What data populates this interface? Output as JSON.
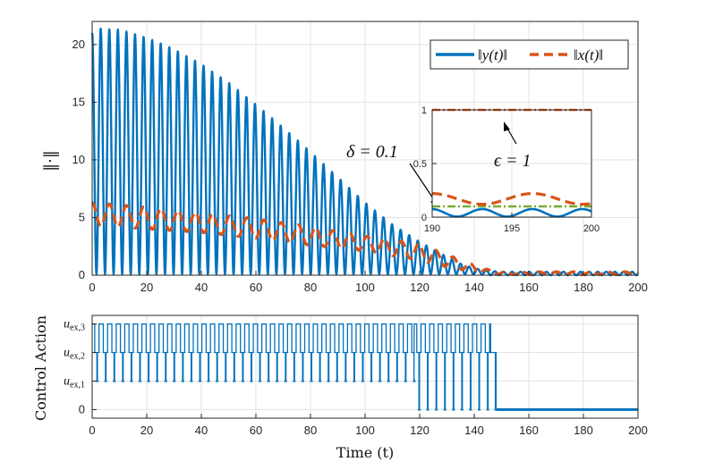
{
  "chart_data": [
    {
      "id": "norms",
      "type": "line",
      "ylabel": "‖·‖",
      "xlim": [
        0,
        200
      ],
      "ylim": [
        0,
        22
      ],
      "xticks": [
        0,
        20,
        40,
        60,
        80,
        100,
        120,
        140,
        160,
        180,
        200
      ],
      "yticks": [
        0,
        5,
        10,
        15,
        20
      ],
      "grid": true,
      "legend_position": "top-right",
      "series": [
        {
          "name": "‖y(t)‖",
          "color": "#0072BD",
          "style": "solid",
          "oscillation_period": 3.14,
          "envelope_x": [
            0,
            2,
            10,
            20,
            30,
            40,
            50,
            60,
            70,
            80,
            90,
            100,
            110,
            120,
            130,
            135,
            140,
            145,
            150,
            200
          ],
          "envelope_max": [
            21.0,
            21.4,
            21.3,
            20.6,
            19.6,
            18.3,
            16.7,
            14.8,
            12.8,
            10.7,
            8.5,
            6.3,
            4.4,
            2.9,
            1.6,
            1.0,
            0.6,
            0.4,
            0.3,
            0.3
          ],
          "envelope_min": [
            0.1,
            0.1,
            0.1,
            0.1,
            0.1,
            0.1,
            0.1,
            0.1,
            0.1,
            0.1,
            0.1,
            0.1,
            0.1,
            0.1,
            0.1,
            0.1,
            0.1,
            0.0,
            0.0,
            0.0
          ]
        },
        {
          "name": "‖x(t)‖",
          "color": "#D95319",
          "style": "dashed",
          "oscillation_period": 6.3,
          "envelope_x": [
            0,
            10,
            20,
            40,
            60,
            80,
            100,
            120,
            130,
            140,
            145,
            150,
            200
          ],
          "envelope_max": [
            6.3,
            6.1,
            5.9,
            5.4,
            4.9,
            4.2,
            3.4,
            2.7,
            1.8,
            0.9,
            0.5,
            0.3,
            0.3
          ],
          "envelope_min": [
            4.3,
            4.2,
            4.0,
            3.7,
            3.2,
            2.6,
            2.1,
            1.3,
            0.7,
            0.3,
            0.1,
            0.05,
            0.05
          ]
        }
      ],
      "annotations": [
        {
          "text": "δ = 0.1",
          "x": 144,
          "y": 11.0
        }
      ]
    },
    {
      "id": "norms-zoom",
      "type": "line",
      "xlim": [
        190,
        200
      ],
      "ylim": [
        0,
        1
      ],
      "xticks": [
        190,
        195,
        200
      ],
      "yticks": [
        0,
        0.5,
        1
      ],
      "ytick_labels": [
        "0",
        "0.5",
        "1"
      ],
      "grid": true,
      "series": [
        {
          "name": "‖y(t)‖",
          "color": "#0072BD",
          "style": "solid",
          "center": 0.04,
          "amplitude": 0.035,
          "period": 3.14
        },
        {
          "name": "‖x(t)‖",
          "color": "#D95319",
          "style": "dashed",
          "center": 0.17,
          "amplitude": 0.05,
          "period": 6.3
        }
      ],
      "hlines": [
        {
          "y": 1.0,
          "color": "#D95319",
          "style": "dashdot"
        },
        {
          "y": 0.1,
          "color": "#77AC30",
          "style": "dashdot"
        }
      ],
      "annotations": [
        {
          "text": "ϵ = 1",
          "x": 194.5,
          "y": 0.6
        }
      ]
    },
    {
      "id": "control",
      "type": "line",
      "xlabel": "Time (t)",
      "ylabel": "Control Action",
      "xlim": [
        0,
        200
      ],
      "ylim": [
        -0.3,
        3.3
      ],
      "xticks": [
        0,
        20,
        40,
        60,
        80,
        100,
        120,
        140,
        160,
        180,
        200
      ],
      "yticks": [
        0,
        1,
        2,
        3
      ],
      "ytick_labels": [
        "0",
        "u_ex,1",
        "u_ex,2",
        "u_ex,3"
      ],
      "grid": true,
      "series": [
        {
          "name": "control",
          "color": "#0072BD",
          "style": "stem-steps",
          "pattern_period": 3.14,
          "phases": [
            {
              "from": 0,
              "to": 118,
              "high": 3,
              "mid": 2,
              "low": 1
            },
            {
              "from": 118,
              "to": 146,
              "high": 3,
              "mid": 2,
              "low": 0
            },
            {
              "from": 146,
              "to": 148,
              "high": 2,
              "mid": 2,
              "low": 0
            },
            {
              "from": 148,
              "to": 200,
              "high": 0,
              "mid": 0,
              "low": 0
            }
          ]
        }
      ]
    }
  ]
}
